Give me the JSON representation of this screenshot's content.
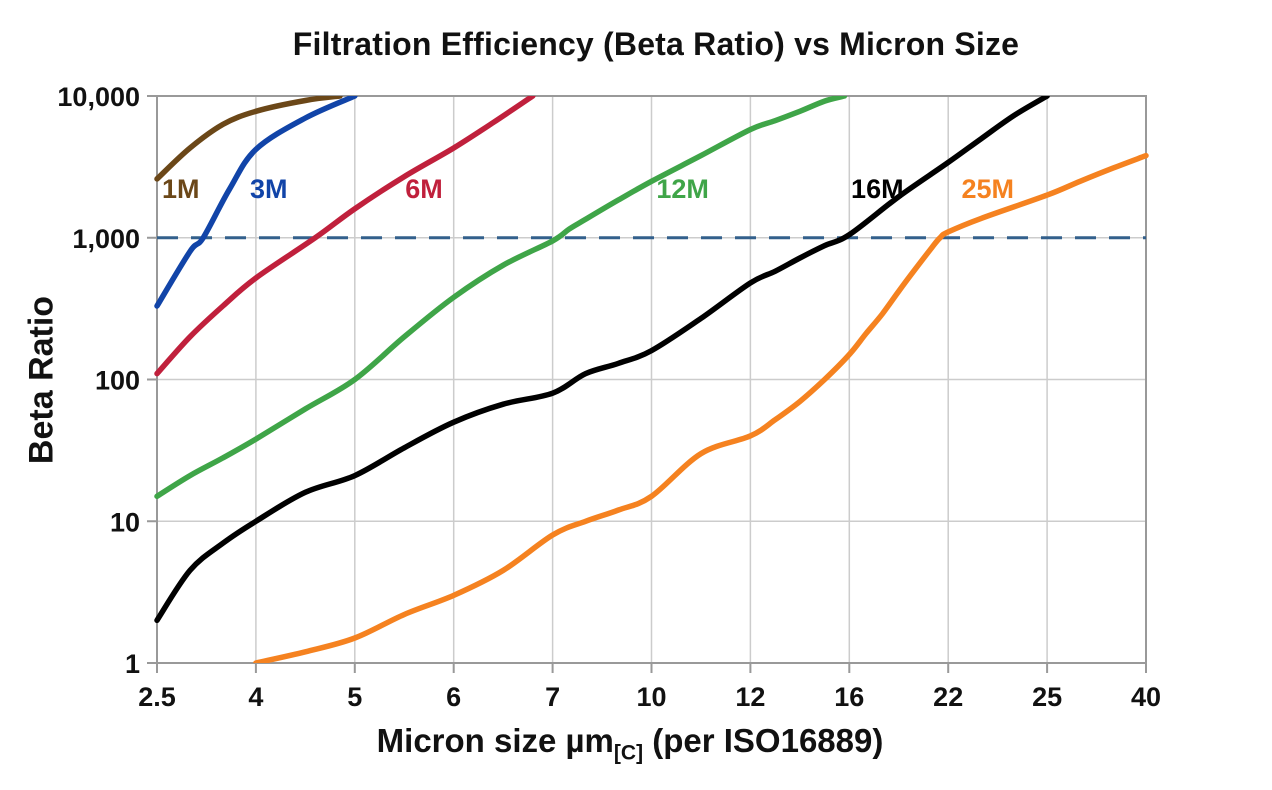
{
  "chart_data": {
    "type": "line",
    "title": "Filtration Efficiency (Beta Ratio) vs Micron Size",
    "xlabel_prefix": "Micron size µm",
    "xlabel_subscript": "[C]",
    "xlabel_suffix": " (per ISO16889)",
    "ylabel": "Beta Ratio",
    "x_scale": "category",
    "x_ticks": [
      2.5,
      4,
      5,
      6,
      7,
      10,
      12,
      16,
      22,
      25,
      40
    ],
    "x_tick_labels": [
      "2.5",
      "4",
      "5",
      "6",
      "7",
      "10",
      "12",
      "16",
      "22",
      "25",
      "40"
    ],
    "y_scale": "log",
    "ylim": [
      1,
      10000
    ],
    "y_ticks": [
      1,
      10,
      100,
      1000,
      10000
    ],
    "y_tick_labels": [
      "1",
      "10",
      "100",
      "1,000",
      "10,000"
    ],
    "grid": true,
    "legend_position": "inline-curve-labels",
    "colors": {
      "grid": "#CCCCCC",
      "frame": "#999999",
      "tick": "#999999",
      "reference_line": "#33608C",
      "text": "#111111"
    },
    "reference_line": {
      "y": 1000,
      "style": "dashed",
      "color": "#33608C"
    },
    "series": [
      {
        "name": "1M",
        "color": "#6B4718",
        "label_at": {
          "micron": 2.86,
          "beta": 1900
        },
        "points": [
          [
            2.5,
            2600
          ],
          [
            3,
            4300
          ],
          [
            3.5,
            6300
          ],
          [
            4,
            7800
          ],
          [
            4.5,
            9300
          ],
          [
            4.85,
            10000
          ]
        ]
      },
      {
        "name": "3M",
        "color": "#1144A8",
        "label_at": {
          "micron": 4.13,
          "beta": 1900
        },
        "points": [
          [
            2.5,
            330
          ],
          [
            3,
            800
          ],
          [
            3.2,
            1000
          ],
          [
            3.6,
            2200
          ],
          [
            4,
            4200
          ],
          [
            4.5,
            7000
          ],
          [
            5,
            10000
          ]
        ]
      },
      {
        "name": "6M",
        "color": "#C0203C",
        "label_at": {
          "micron": 5.7,
          "beta": 1900
        },
        "points": [
          [
            2.5,
            110
          ],
          [
            3,
            200
          ],
          [
            3.5,
            330
          ],
          [
            4,
            520
          ],
          [
            4.6,
            1000
          ],
          [
            5,
            1600
          ],
          [
            5.5,
            2700
          ],
          [
            6,
            4300
          ],
          [
            6.4,
            6500
          ],
          [
            6.8,
            10000
          ]
        ]
      },
      {
        "name": "12M",
        "color": "#3FA548",
        "label_at": {
          "micron": 10.63,
          "beta": 1900
        },
        "points": [
          [
            2.5,
            15
          ],
          [
            3,
            21
          ],
          [
            3.5,
            28
          ],
          [
            4,
            38
          ],
          [
            4.5,
            62
          ],
          [
            5,
            100
          ],
          [
            5.5,
            200
          ],
          [
            6,
            380
          ],
          [
            6.5,
            640
          ],
          [
            7,
            950
          ],
          [
            7.5,
            1150
          ],
          [
            8,
            1350
          ],
          [
            9,
            1850
          ],
          [
            10,
            2500
          ],
          [
            11,
            3800
          ],
          [
            12,
            5800
          ],
          [
            13,
            6700
          ],
          [
            14,
            7800
          ],
          [
            15,
            9200
          ],
          [
            15.8,
            10000
          ]
        ]
      },
      {
        "name": "16M",
        "color": "#000000",
        "label_at": {
          "micron": 17.7,
          "beta": 1900
        },
        "points": [
          [
            2.5,
            2
          ],
          [
            3,
            4.5
          ],
          [
            3.5,
            7
          ],
          [
            4,
            10
          ],
          [
            4.5,
            16
          ],
          [
            5,
            21
          ],
          [
            5.5,
            33
          ],
          [
            6,
            50
          ],
          [
            6.5,
            67
          ],
          [
            7,
            80
          ],
          [
            8,
            110
          ],
          [
            9,
            130
          ],
          [
            10,
            160
          ],
          [
            11,
            270
          ],
          [
            12,
            480
          ],
          [
            13,
            580
          ],
          [
            14,
            720
          ],
          [
            15,
            880
          ],
          [
            16,
            1050
          ],
          [
            19,
            1950
          ],
          [
            22,
            3400
          ],
          [
            23,
            5000
          ],
          [
            24,
            7300
          ],
          [
            25,
            10000
          ]
        ]
      },
      {
        "name": "25M",
        "color": "#F58220",
        "label_at": {
          "micron": 23.2,
          "beta": 1900
        },
        "points": [
          [
            4,
            1
          ],
          [
            4.5,
            1.2
          ],
          [
            5,
            1.5
          ],
          [
            5.5,
            2.2
          ],
          [
            6,
            3
          ],
          [
            6.5,
            4.5
          ],
          [
            7,
            8
          ],
          [
            8,
            10
          ],
          [
            9,
            12
          ],
          [
            10,
            15
          ],
          [
            11,
            30
          ],
          [
            12,
            40
          ],
          [
            13,
            52
          ],
          [
            14,
            70
          ],
          [
            15,
            100
          ],
          [
            16,
            150
          ],
          [
            17,
            210
          ],
          [
            18,
            290
          ],
          [
            19,
            420
          ],
          [
            20,
            600
          ],
          [
            21,
            850
          ],
          [
            21.5,
            1000
          ],
          [
            22,
            1100
          ],
          [
            23,
            1370
          ],
          [
            25,
            2000
          ],
          [
            30,
            2500
          ],
          [
            35,
            3100
          ],
          [
            40,
            3800
          ]
        ]
      }
    ]
  }
}
